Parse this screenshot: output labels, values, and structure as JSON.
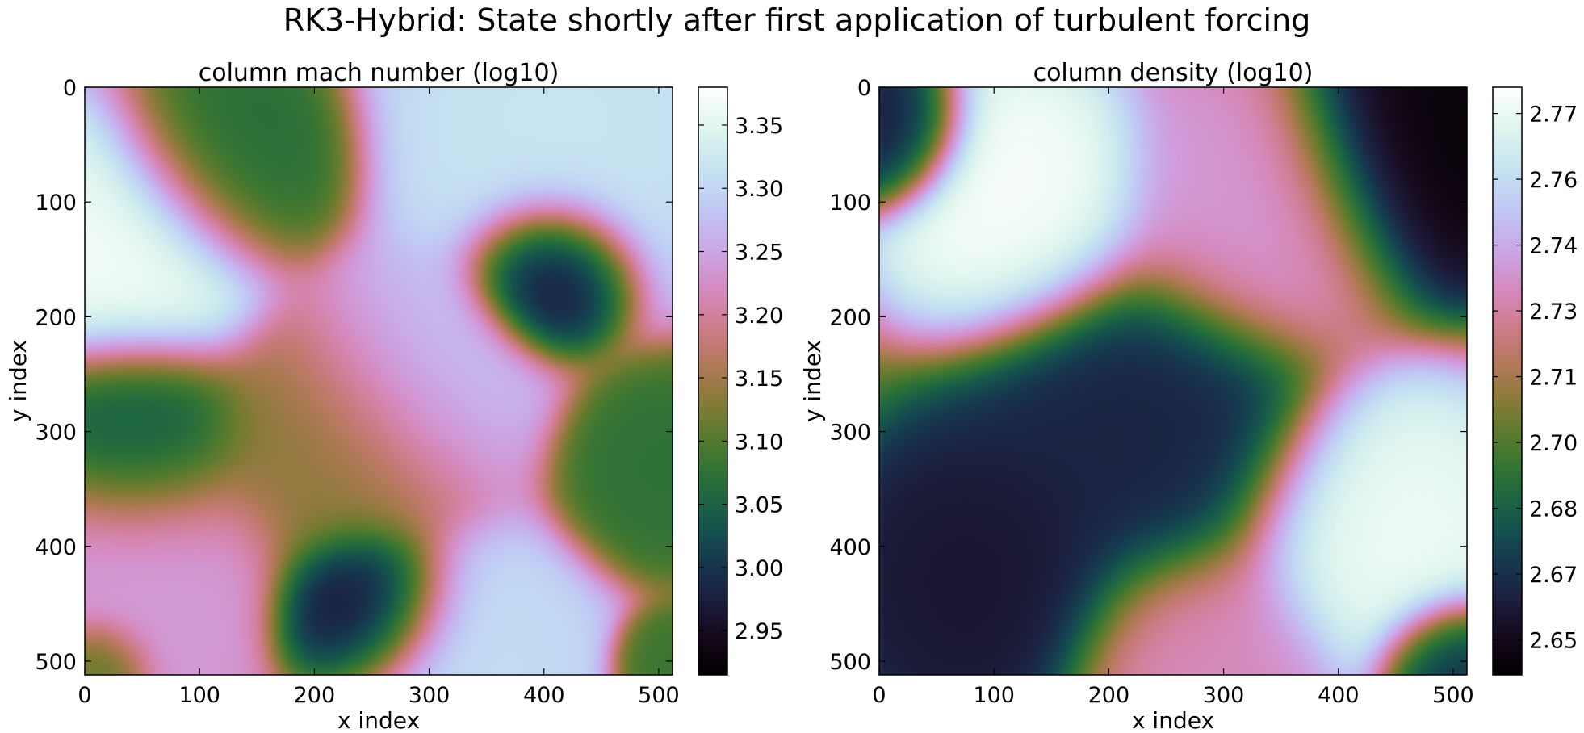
{
  "figure_title": "RK3-Hybrid: State shortly after first application of turbulent forcing",
  "colormap": "cubehelix",
  "chart_data": [
    {
      "type": "heatmap",
      "title": "column mach number (log10)",
      "xlabel": "x index",
      "ylabel": "y index",
      "xlim": [
        0,
        512
      ],
      "ylim": [
        512,
        0
      ],
      "x_ticks": [
        0,
        100,
        200,
        300,
        400,
        500
      ],
      "y_ticks": [
        0,
        100,
        200,
        300,
        400,
        500
      ],
      "colorbar": {
        "vmin": 2.915,
        "vmax": 3.38,
        "ticks": [
          "2.95",
          "3.00",
          "3.05",
          "3.10",
          "3.15",
          "3.20",
          "3.25",
          "3.30",
          "3.35"
        ],
        "tick_values": [
          2.95,
          3.0,
          3.05,
          3.1,
          3.15,
          3.2,
          3.25,
          3.3,
          3.35
        ]
      },
      "features": [
        {
          "x": 35,
          "y": 145,
          "value": 3.37,
          "spread": 55
        },
        {
          "x": 405,
          "y": 160,
          "value": 2.92,
          "spread": 32
        },
        {
          "x": 245,
          "y": 455,
          "value": 2.93,
          "spread": 35
        },
        {
          "x": 40,
          "y": 305,
          "value": 3.02,
          "spread": 45
        },
        {
          "x": 130,
          "y": 60,
          "value": 3.06,
          "spread": 45
        },
        {
          "x": 410,
          "y": 40,
          "value": 3.32,
          "spread": 70
        },
        {
          "x": 290,
          "y": 255,
          "value": 3.28,
          "spread": 50
        },
        {
          "x": 330,
          "y": 505,
          "value": 3.31,
          "spread": 55
        },
        {
          "x": 225,
          "y": 310,
          "value": 3.13,
          "spread": 55
        },
        {
          "x": 40,
          "y": 420,
          "value": 3.24,
          "spread": 60
        },
        {
          "x": 505,
          "y": 330,
          "value": 3.07,
          "spread": 40
        },
        {
          "x": 510,
          "y": 505,
          "value": 3.08,
          "spread": 22
        },
        {
          "x": 10,
          "y": 505,
          "value": 3.08,
          "spread": 22
        }
      ],
      "base_value": 3.2
    },
    {
      "type": "heatmap",
      "title": "column density (log10)",
      "xlabel": "x index",
      "ylabel": "y index",
      "xlim": [
        0,
        512
      ],
      "ylim": [
        512,
        0
      ],
      "x_ticks": [
        0,
        100,
        200,
        300,
        400,
        500
      ],
      "y_ticks": [
        0,
        100,
        200,
        300,
        400,
        500
      ],
      "colorbar": {
        "vmin": 2.642,
        "vmax": 2.776,
        "ticks": [
          "2.65",
          "2.67",
          "2.68",
          "2.70",
          "2.71",
          "2.73",
          "2.74",
          "2.76",
          "2.77"
        ],
        "tick_values": [
          2.65,
          2.665,
          2.68,
          2.695,
          2.71,
          2.725,
          2.74,
          2.755,
          2.77
        ]
      },
      "features": [
        {
          "x": 120,
          "y": 100,
          "value": 2.775,
          "spread": 55
        },
        {
          "x": 470,
          "y": 55,
          "value": 2.643,
          "spread": 55
        },
        {
          "x": 440,
          "y": 390,
          "value": 2.772,
          "spread": 60
        },
        {
          "x": 10,
          "y": 40,
          "value": 2.655,
          "spread": 30
        },
        {
          "x": 90,
          "y": 430,
          "value": 2.655,
          "spread": 60
        },
        {
          "x": 230,
          "y": 300,
          "value": 2.66,
          "spread": 70
        },
        {
          "x": 500,
          "y": 505,
          "value": 2.66,
          "spread": 30
        },
        {
          "x": 330,
          "y": 110,
          "value": 2.735,
          "spread": 60
        },
        {
          "x": 280,
          "y": 505,
          "value": 2.73,
          "spread": 55
        }
      ],
      "base_value": 2.705
    }
  ]
}
